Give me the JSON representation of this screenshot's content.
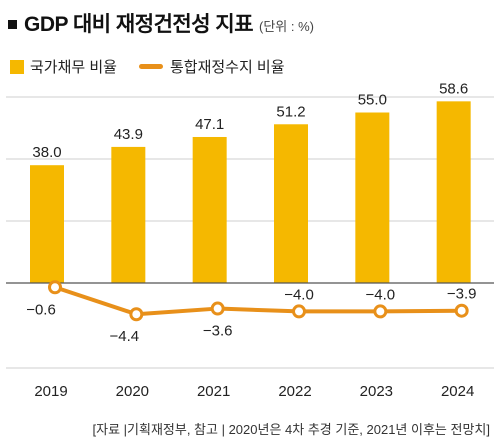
{
  "title": "GDP 대비 재정건전성 지표",
  "unit_note": "(단위 : %)",
  "source": "[자료 |기획재정부, 참고 | 2020년은 4차 추경 기준, 2021년 이후는 전망치]",
  "colors": {
    "bar": "#F5B800",
    "line": "#E8901A",
    "grid": "#cfcfcf",
    "zero": "#555555"
  },
  "chart_data": {
    "type": "bar",
    "categories": [
      "2019",
      "2020",
      "2021",
      "2022",
      "2023",
      "2024"
    ],
    "series": [
      {
        "name": "국가채무 비율",
        "type": "bar",
        "values": [
          38.0,
          43.9,
          47.1,
          51.2,
          55.0,
          58.6
        ]
      },
      {
        "name": "통합재정수지 비율",
        "type": "line",
        "values": [
          -0.6,
          -4.4,
          -3.6,
          -4.0,
          -4.0,
          -3.9
        ]
      }
    ],
    "data_labels": {
      "bar": [
        "38.0",
        "43.9",
        "47.1",
        "51.2",
        "55.0",
        "58.6"
      ],
      "line": [
        "−0.6",
        "−4.4",
        "−3.6",
        "−4.0",
        "−4.0",
        "−3.9"
      ]
    },
    "ylim": [
      -10,
      60
    ],
    "grid": true,
    "legend_position": "top-left"
  }
}
